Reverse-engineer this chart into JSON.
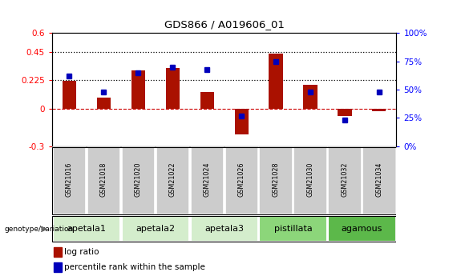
{
  "title": "GDS866 / A019606_01",
  "samples": [
    "GSM21016",
    "GSM21018",
    "GSM21020",
    "GSM21022",
    "GSM21024",
    "GSM21026",
    "GSM21028",
    "GSM21030",
    "GSM21032",
    "GSM21034"
  ],
  "log_ratio": [
    0.22,
    0.09,
    0.305,
    0.325,
    0.13,
    -0.205,
    0.435,
    0.19,
    -0.06,
    -0.02
  ],
  "percentile_rank": [
    62,
    48,
    65,
    70,
    68,
    27,
    75,
    48,
    23,
    48
  ],
  "groups": [
    {
      "name": "apetala1",
      "indices": [
        0,
        1
      ],
      "color": "#d4edcc"
    },
    {
      "name": "apetala2",
      "indices": [
        2,
        3
      ],
      "color": "#d4edcc"
    },
    {
      "name": "apetala3",
      "indices": [
        4,
        5
      ],
      "color": "#d4edcc"
    },
    {
      "name": "pistillata",
      "indices": [
        6,
        7
      ],
      "color": "#8cd67a"
    },
    {
      "name": "agamous",
      "indices": [
        8,
        9
      ],
      "color": "#5cb84a"
    }
  ],
  "ylim_left": [
    -0.3,
    0.6
  ],
  "ylim_right": [
    0,
    100
  ],
  "yticks_left": [
    -0.3,
    0.0,
    0.225,
    0.45,
    0.6
  ],
  "yticks_right": [
    0,
    25,
    50,
    75,
    100
  ],
  "ytick_labels_left": [
    "-0.3",
    "0",
    "0.225",
    "0.45",
    "0.6"
  ],
  "ytick_labels_right": [
    "0%",
    "25%",
    "50%",
    "75%",
    "100%"
  ],
  "hlines": [
    0.225,
    0.45
  ],
  "hline_zero_color": "#cc0000",
  "bar_color": "#aa1100",
  "dot_color": "#0000bb",
  "legend_bar_label": "log ratio",
  "legend_dot_label": "percentile rank within the sample",
  "genotype_label": "genotype/variation",
  "sample_box_color": "#cccccc",
  "group_box_colors": [
    "#d4edcc",
    "#d4edcc",
    "#d4edcc",
    "#8cd67a",
    "#5cb84a"
  ]
}
